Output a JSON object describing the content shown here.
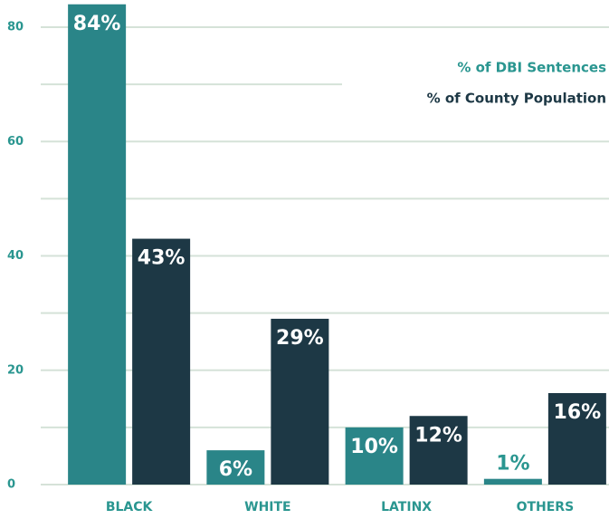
{
  "chart_data": {
    "type": "bar",
    "categories": [
      "BLACK",
      "WHITE",
      "LATINX",
      "OTHERS"
    ],
    "series": [
      {
        "name": "% of DBI Sentences",
        "color": "#2a8588",
        "values": [
          84,
          6,
          10,
          1
        ],
        "value_labels": [
          "84%",
          "6%",
          "10%",
          "1%"
        ]
      },
      {
        "name": "% of County Population",
        "color": "#1d3845",
        "values": [
          43,
          29,
          12,
          16
        ],
        "value_labels": [
          "43%",
          "29%",
          "12%",
          "16%"
        ]
      }
    ],
    "ylim": [
      0,
      80
    ],
    "yticks": [
      0,
      20,
      40,
      60,
      80
    ],
    "minor_yticks": [
      10,
      30,
      50,
      70
    ],
    "grid": true,
    "legend": "upper right"
  }
}
